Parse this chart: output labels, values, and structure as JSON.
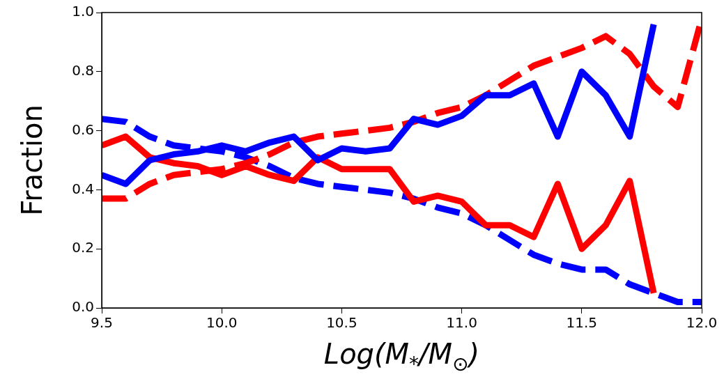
{
  "chart_data": {
    "type": "line",
    "xlabel": "Log(M$_{*}$/M$_{⊙}$)",
    "ylabel": "Fraction",
    "xlim": [
      9.5,
      12.0
    ],
    "ylim": [
      0.0,
      1.0
    ],
    "xticks": [
      {
        "value": 9.5,
        "label": "9.5"
      },
      {
        "value": 10.0,
        "label": "10.0"
      },
      {
        "value": 10.5,
        "label": "10.5"
      },
      {
        "value": 11.0,
        "label": "11.0"
      },
      {
        "value": 11.5,
        "label": "11.5"
      },
      {
        "value": 12.0,
        "label": "12.0"
      }
    ],
    "yticks": [
      {
        "value": 0,
        "label": "0.0"
      },
      {
        "value": 0.2,
        "label": "0.2"
      },
      {
        "value": 0.4,
        "label": "0.4"
      },
      {
        "value": 0.6,
        "label": "0.6"
      },
      {
        "value": 0.8,
        "label": "0.8"
      },
      {
        "value": 1.0,
        "label": "1.0"
      }
    ],
    "grid": false,
    "legend": false,
    "marker": "none",
    "series": [
      {
        "color": "#0000ff",
        "line_style": "solid",
        "x": [
          9.5,
          9.6,
          9.7,
          9.8,
          9.9,
          10.0,
          10.1,
          10.2,
          10.3,
          10.4,
          10.5,
          10.6,
          10.7,
          10.8,
          10.9,
          11.0,
          11.1,
          11.2,
          11.3,
          11.4,
          11.5,
          11.6,
          11.7,
          11.8
        ],
        "values": [
          0.45,
          0.42,
          0.5,
          0.52,
          0.53,
          0.55,
          0.53,
          0.56,
          0.58,
          0.5,
          0.54,
          0.53,
          0.54,
          0.64,
          0.62,
          0.65,
          0.72,
          0.72,
          0.76,
          0.58,
          0.8,
          0.72,
          0.58,
          0.96
        ]
      },
      {
        "color": "#ff0000",
        "line_style": "solid",
        "x": [
          9.5,
          9.6,
          9.7,
          9.8,
          9.9,
          10.0,
          10.1,
          10.2,
          10.3,
          10.4,
          10.5,
          10.6,
          10.7,
          10.8,
          10.9,
          11.0,
          11.1,
          11.2,
          11.3,
          11.4,
          11.5,
          11.6,
          11.7,
          11.8
        ],
        "values": [
          0.55,
          0.58,
          0.51,
          0.49,
          0.48,
          0.45,
          0.48,
          0.45,
          0.43,
          0.51,
          0.47,
          0.47,
          0.47,
          0.36,
          0.38,
          0.36,
          0.28,
          0.28,
          0.24,
          0.42,
          0.2,
          0.28,
          0.43,
          0.05
        ]
      },
      {
        "color": "#ff0000",
        "line_style": "dashed",
        "x": [
          9.5,
          9.6,
          9.7,
          9.8,
          9.9,
          10.0,
          10.1,
          10.2,
          10.3,
          10.4,
          10.5,
          10.6,
          10.7,
          10.8,
          10.9,
          11.0,
          11.1,
          11.2,
          11.3,
          11.4,
          11.5,
          11.6,
          11.7,
          11.8,
          11.9,
          12.0
        ],
        "values": [
          0.37,
          0.37,
          0.42,
          0.45,
          0.46,
          0.47,
          0.49,
          0.52,
          0.56,
          0.58,
          0.59,
          0.6,
          0.61,
          0.63,
          0.66,
          0.68,
          0.72,
          0.77,
          0.82,
          0.85,
          0.88,
          0.92,
          0.86,
          0.75,
          0.68,
          0.98
        ]
      },
      {
        "color": "#0000ff",
        "line_style": "dashed",
        "x": [
          9.5,
          9.6,
          9.7,
          9.8,
          9.9,
          10.0,
          10.1,
          10.2,
          10.3,
          10.4,
          10.5,
          10.6,
          10.7,
          10.8,
          10.9,
          11.0,
          11.1,
          11.2,
          11.3,
          11.4,
          11.5,
          11.6,
          11.7,
          11.8,
          11.9,
          12.0
        ],
        "values": [
          0.64,
          0.63,
          0.58,
          0.55,
          0.54,
          0.53,
          0.51,
          0.48,
          0.44,
          0.42,
          0.41,
          0.4,
          0.39,
          0.37,
          0.34,
          0.32,
          0.28,
          0.23,
          0.18,
          0.15,
          0.13,
          0.13,
          0.08,
          0.05,
          0.02,
          0.02
        ]
      }
    ]
  }
}
